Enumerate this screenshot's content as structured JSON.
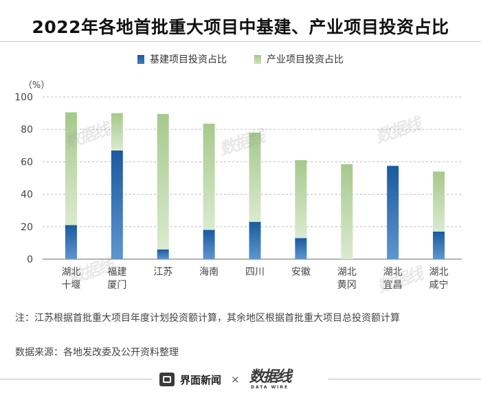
{
  "title": "2022年各地首批重大项目中基建、产业项目投资占比",
  "legend": {
    "basic": "基建项目投资占比",
    "industry": "产业项目投资占比"
  },
  "colors": {
    "basic_top": "#1a5aa0",
    "basic_bottom": "#5f95cf",
    "industry_top": "#a6c98c",
    "industry_bottom": "#dbead0",
    "grid": "#bbbbbb",
    "axis": "#888888"
  },
  "chart_data": {
    "type": "bar",
    "stacked": true,
    "unit_label": "（%）",
    "ylim": [
      0,
      100
    ],
    "yticks": [
      0,
      20,
      40,
      60,
      80,
      100
    ],
    "categories": [
      [
        "湖北",
        "十堰"
      ],
      [
        "福建",
        "厦门"
      ],
      [
        "江苏"
      ],
      [
        "海南"
      ],
      [
        "四川"
      ],
      [
        "安徽"
      ],
      [
        "湖北",
        "黄冈"
      ],
      [
        "湖北",
        "宜昌"
      ],
      [
        "湖北",
        "咸宁"
      ]
    ],
    "series": [
      {
        "name": "基建项目投资占比",
        "values": [
          21,
          67,
          6,
          18,
          23,
          13,
          0,
          57.5,
          17
        ]
      },
      {
        "name": "产业项目投资占比",
        "values": [
          69.5,
          23,
          83.5,
          65.5,
          55,
          48,
          58.5,
          0,
          37
        ]
      }
    ]
  },
  "note": "注：江苏根据首批重大项目年度计划投资额计算，其余地区根据首批重大项目总投资额计算",
  "source": "数据来源：各地发改委及公开资料整理",
  "footer": {
    "brand": "界面新闻",
    "times": "×",
    "logo_main": "数据线",
    "logo_sub": "DATA WIRE"
  }
}
